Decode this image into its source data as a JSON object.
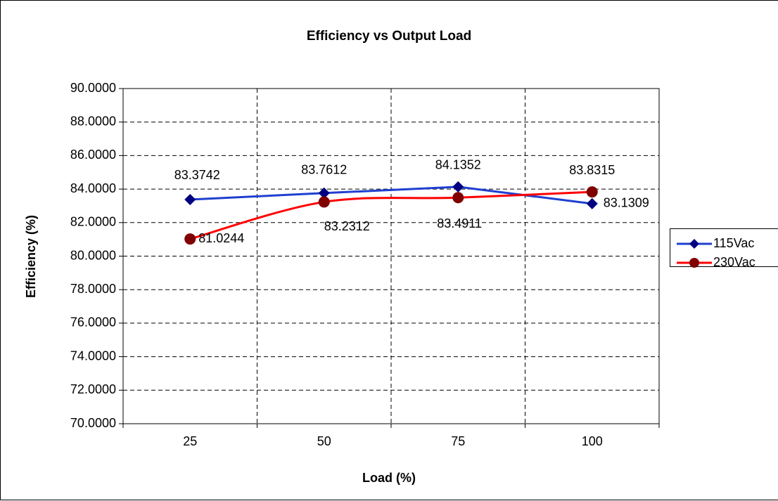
{
  "chart_data": {
    "type": "line",
    "title": "Efficiency vs Output Load",
    "x_label": "Load (%)",
    "y_label": "Efficiency (%)",
    "categories": [
      "25",
      "50",
      "75",
      "100"
    ],
    "series": [
      {
        "name": "115Vac",
        "color": "#1f3fd0",
        "marker_color": "#000080",
        "marker": "diamond",
        "smooth": false,
        "values": [
          83.3742,
          83.7612,
          84.1352,
          83.1309
        ]
      },
      {
        "name": "230Vac",
        "color": "#ff0000",
        "marker_color": "#800000",
        "marker": "circle",
        "smooth": true,
        "values": [
          81.0244,
          83.2312,
          83.4911,
          83.8315
        ]
      }
    ],
    "ylim": [
      70,
      90
    ],
    "yticks": [
      {
        "value": 70,
        "label": "70.0000"
      },
      {
        "value": 72,
        "label": "72.0000"
      },
      {
        "value": 74,
        "label": "74.0000"
      },
      {
        "value": 76,
        "label": "76.0000"
      },
      {
        "value": 78,
        "label": "78.0000"
      },
      {
        "value": 80,
        "label": "80.0000"
      },
      {
        "value": 82,
        "label": "82.0000"
      },
      {
        "value": 84,
        "label": "84.0000"
      },
      {
        "value": 86,
        "label": "86.0000"
      },
      {
        "value": 88,
        "label": "88.0000"
      },
      {
        "value": 90,
        "label": "90.0000"
      }
    ],
    "grid": true,
    "legend": "right"
  }
}
